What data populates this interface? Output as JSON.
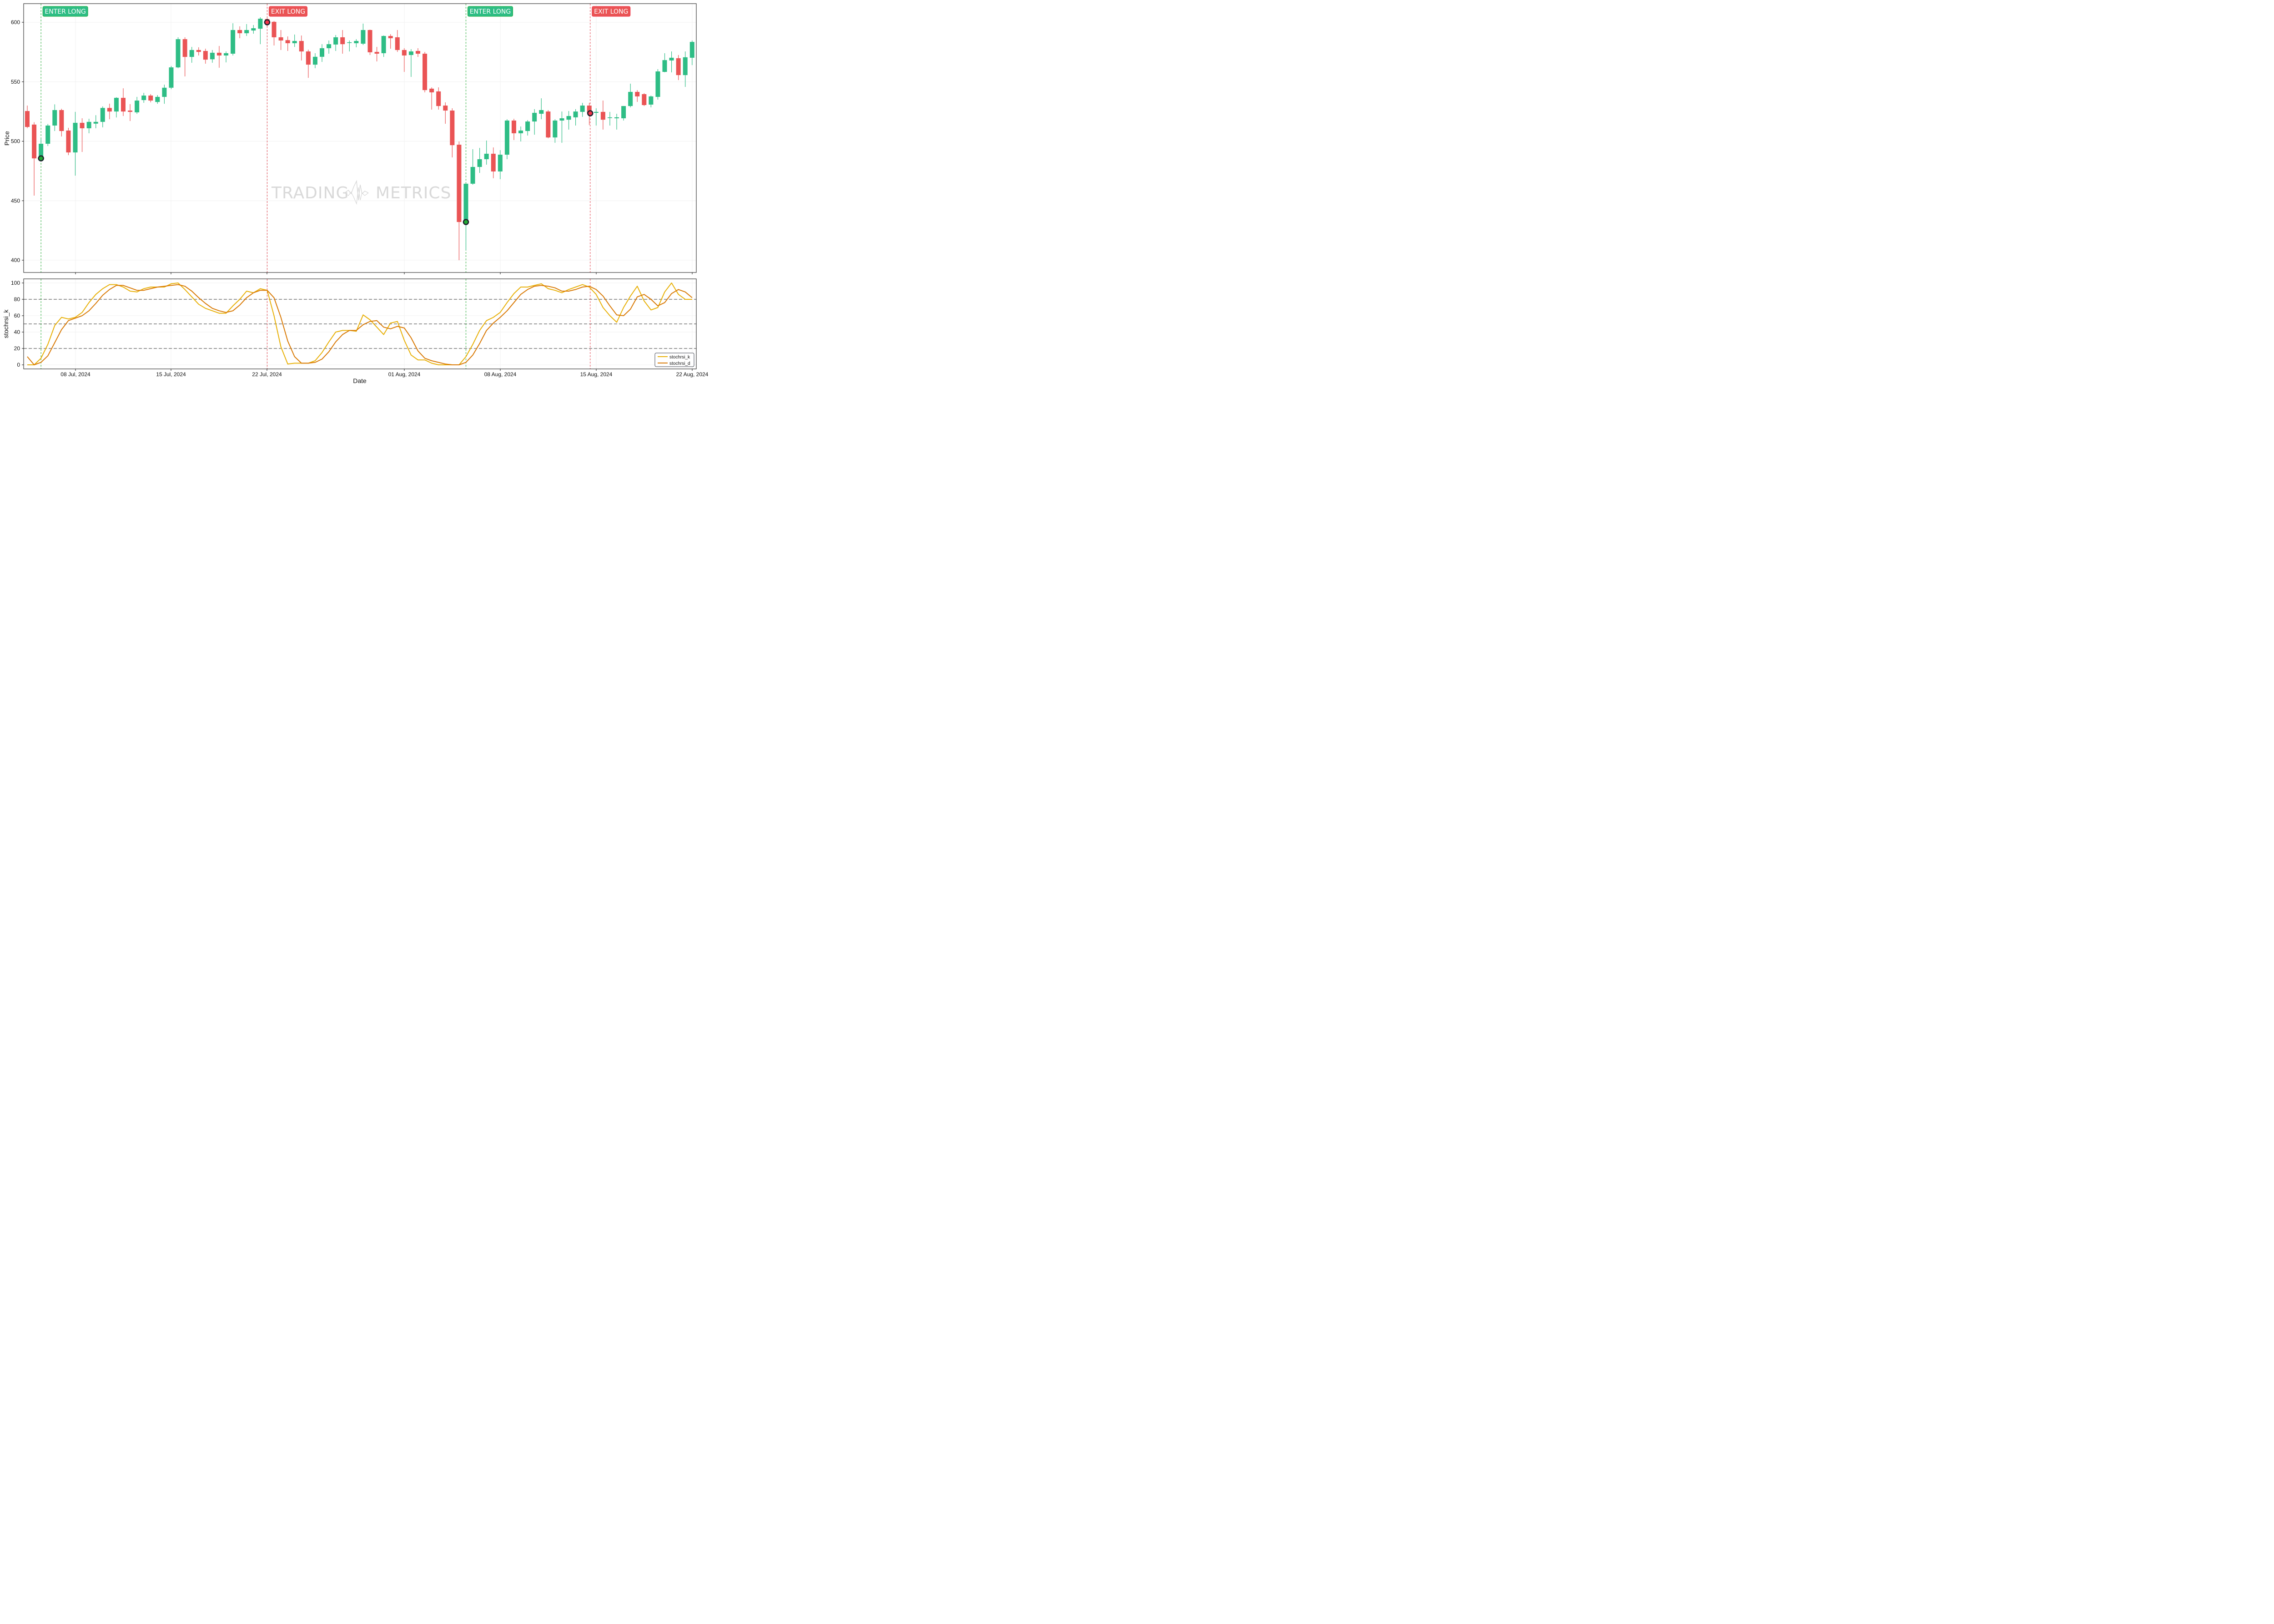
{
  "chart_data": [
    {
      "type": "candlestick",
      "title": "",
      "xlabel": "",
      "ylabel": "Price",
      "ylim": [
        390,
        621
      ],
      "yticks": [
        400,
        450,
        500,
        550,
        600
      ],
      "grid": true,
      "interval": "12h",
      "colors": {
        "up": "#2ebd85",
        "down": "#ea5455"
      },
      "watermark": "TRADING METRICS",
      "ohlc": [
        [
          525.4,
          530.0,
          511.0,
          512.0
        ],
        [
          514.0,
          516.0,
          454.3,
          485.6
        ],
        [
          485.6,
          502.0,
          484.0,
          497.9
        ],
        [
          497.9,
          514.5,
          496.0,
          513.2
        ],
        [
          513.2,
          531.0,
          508.6,
          526.2
        ],
        [
          526.2,
          527.3,
          504.0,
          508.6
        ],
        [
          509.0,
          511.3,
          488.3,
          490.6
        ],
        [
          490.6,
          524.7,
          471.1,
          515.5
        ],
        [
          515.5,
          519.3,
          491.0,
          510.9
        ],
        [
          510.9,
          518.9,
          506.7,
          516.3
        ],
        [
          514.8,
          521.9,
          510.9,
          516.3
        ],
        [
          516.3,
          529.3,
          511.7,
          528.0
        ],
        [
          528.0,
          531.6,
          518.5,
          525.0
        ],
        [
          525.0,
          537.0,
          520.0,
          536.5
        ],
        [
          536.5,
          544.5,
          521.2,
          525.0
        ],
        [
          525.8,
          531.2,
          517.0,
          524.7
        ],
        [
          524.3,
          537.3,
          523.0,
          534.2
        ],
        [
          534.6,
          540.7,
          532.3,
          538.4
        ],
        [
          538.4,
          539.6,
          532.7,
          534.2
        ],
        [
          533.0,
          538.8,
          531.5,
          537.3
        ],
        [
          537.3,
          547.6,
          531.5,
          545.0
        ],
        [
          545.0,
          563.3,
          543.8,
          562.1
        ],
        [
          562.1,
          587.4,
          561.4,
          585.8
        ],
        [
          585.8,
          587.4,
          554.5,
          570.9
        ],
        [
          570.9,
          579.3,
          566.0,
          576.7
        ],
        [
          576.7,
          579.0,
          572.1,
          575.1
        ],
        [
          575.9,
          577.8,
          565.2,
          568.6
        ],
        [
          568.9,
          576.7,
          566.0,
          574.4
        ],
        [
          574.4,
          580.1,
          561.8,
          572.1
        ],
        [
          572.1,
          575.5,
          566.3,
          574.0
        ],
        [
          573.6,
          599.2,
          572.1,
          593.5
        ],
        [
          593.5,
          596.6,
          586.6,
          590.8
        ],
        [
          590.8,
          598.5,
          588.5,
          593.5
        ],
        [
          593.1,
          597.7,
          590.4,
          595.0
        ],
        [
          594.6,
          604.2,
          581.6,
          603.0
        ],
        [
          602.7,
          603.5,
          595.8,
          600.4
        ],
        [
          600.4,
          601.1,
          580.5,
          587.4
        ],
        [
          587.4,
          593.5,
          576.7,
          584.7
        ],
        [
          585.0,
          588.1,
          575.9,
          582.4
        ],
        [
          582.4,
          589.7,
          579.3,
          584.3
        ],
        [
          584.3,
          588.9,
          567.9,
          575.5
        ],
        [
          575.5,
          577.0,
          553.3,
          564.4
        ],
        [
          564.4,
          574.0,
          561.4,
          571.0
        ],
        [
          571.0,
          581.6,
          566.7,
          578.2
        ],
        [
          578.2,
          584.7,
          573.6,
          581.6
        ],
        [
          581.3,
          589.3,
          575.9,
          587.4
        ],
        [
          587.4,
          593.5,
          573.6,
          581.6
        ],
        [
          582.8,
          584.7,
          575.5,
          583.2
        ],
        [
          582.4,
          585.8,
          579.0,
          584.3
        ],
        [
          582.0,
          598.9,
          580.9,
          593.5
        ],
        [
          593.5,
          593.9,
          572.5,
          574.8
        ],
        [
          575.1,
          579.3,
          567.1,
          573.6
        ],
        [
          574.0,
          588.9,
          570.9,
          588.5
        ],
        [
          588.5,
          590.0,
          577.8,
          586.6
        ],
        [
          587.4,
          593.5,
          575.1,
          576.7
        ],
        [
          576.7,
          578.2,
          558.3,
          572.1
        ],
        [
          572.5,
          577.4,
          554.1,
          575.5
        ],
        [
          575.9,
          578.2,
          570.9,
          573.6
        ],
        [
          573.6,
          575.1,
          541.1,
          543.0
        ],
        [
          544.2,
          545.3,
          526.6,
          541.1
        ],
        [
          541.9,
          545.3,
          526.6,
          529.6
        ],
        [
          530.0,
          532.7,
          514.7,
          525.8
        ],
        [
          525.8,
          527.7,
          486.4,
          496.7
        ],
        [
          497.1,
          499.8,
          400.0,
          432.1
        ],
        [
          432.1,
          464.3,
          408.4,
          464.3
        ],
        [
          464.3,
          493.3,
          463.5,
          478.4
        ],
        [
          478.4,
          494.4,
          473.4,
          484.9
        ],
        [
          484.9,
          500.6,
          480.3,
          489.5
        ],
        [
          489.5,
          494.8,
          468.9,
          474.6
        ],
        [
          474.6,
          492.5,
          468.1,
          488.7
        ],
        [
          488.7,
          518.5,
          484.9,
          517.4
        ],
        [
          517.4,
          518.9,
          501.0,
          506.7
        ],
        [
          506.7,
          512.4,
          499.8,
          509.0
        ],
        [
          508.6,
          517.8,
          504.8,
          516.6
        ],
        [
          516.6,
          527.0,
          505.5,
          523.9
        ],
        [
          523.1,
          536.1,
          518.5,
          526.2
        ],
        [
          525.0,
          526.2,
          502.5,
          503.2
        ],
        [
          503.2,
          518.5,
          498.7,
          517.4
        ],
        [
          517.4,
          525.0,
          498.7,
          519.3
        ],
        [
          518.1,
          525.4,
          509.8,
          521.2
        ],
        [
          520.1,
          527.0,
          513.2,
          525.0
        ],
        [
          524.7,
          532.3,
          520.5,
          530.0
        ],
        [
          530.0,
          532.3,
          513.6,
          523.5
        ],
        [
          523.9,
          527.7,
          513.2,
          524.7
        ],
        [
          524.7,
          534.2,
          509.8,
          518.1
        ],
        [
          519.7,
          524.7,
          513.2,
          520.1
        ],
        [
          519.3,
          523.1,
          509.8,
          520.1
        ],
        [
          519.3,
          529.6,
          517.4,
          529.6
        ],
        [
          529.6,
          548.4,
          528.5,
          541.5
        ],
        [
          541.5,
          543.0,
          533.1,
          537.7
        ],
        [
          539.6,
          540.4,
          529.6,
          530.4
        ],
        [
          530.8,
          538.4,
          528.5,
          537.7
        ],
        [
          537.3,
          560.6,
          535.0,
          558.7
        ],
        [
          558.3,
          574.0,
          558.0,
          568.2
        ],
        [
          567.9,
          575.5,
          557.9,
          570.2
        ],
        [
          569.8,
          572.5,
          551.4,
          555.6
        ],
        [
          555.6,
          575.5,
          545.7,
          570.6
        ],
        [
          570.2,
          584.7,
          564.0,
          583.5
        ]
      ],
      "signals": [
        {
          "label": "ENTER LONG",
          "type": "enter",
          "candle_index": 2,
          "price": 485.6
        },
        {
          "label": "EXIT LONG",
          "type": "exit",
          "candle_index": 35,
          "price": 600.0
        },
        {
          "label": "ENTER LONG",
          "type": "enter",
          "candle_index": 64,
          "price": 432.1
        },
        {
          "label": "EXIT LONG",
          "type": "exit",
          "candle_index": 82,
          "price": 523.5
        }
      ]
    },
    {
      "type": "line",
      "title": "",
      "xlabel": "Date",
      "ylabel": "stochrsi_k",
      "ylim": [
        -5,
        105
      ],
      "yticks": [
        0,
        20,
        40,
        60,
        80,
        100
      ],
      "reference_lines": [
        20,
        50,
        80
      ],
      "legend_position": "lower right",
      "x_ticks": [
        "08 Jul, 2024",
        "15 Jul, 2024",
        "22 Jul, 2024",
        "01 Aug, 2024",
        "08 Aug, 2024",
        "15 Aug, 2024",
        "22 Aug, 2024"
      ],
      "series": [
        {
          "name": "stochrsi_k",
          "color": "#e8b10a",
          "values": [
            0,
            0,
            8,
            25,
            48,
            58,
            56,
            58,
            64,
            76,
            86,
            93,
            98,
            98,
            95,
            90,
            89,
            93,
            95,
            95,
            95,
            99,
            100,
            92,
            83,
            74,
            69,
            66,
            63,
            63,
            72,
            80,
            90,
            88,
            93,
            91,
            60,
            22,
            1,
            2,
            2,
            2,
            5,
            15,
            28,
            40,
            42,
            42,
            41,
            61,
            55,
            46,
            37,
            51,
            53,
            30,
            12,
            6,
            6,
            2,
            0,
            0,
            0,
            0,
            10,
            25,
            42,
            54,
            58,
            64,
            76,
            87,
            95,
            95,
            97,
            99,
            93,
            91,
            88,
            92,
            95,
            98,
            95,
            86,
            70,
            60,
            52,
            70,
            84,
            96,
            78,
            67,
            70,
            89,
            100,
            86,
            80,
            80
          ]
        },
        {
          "name": "stochrsi_d",
          "color": "#d97a06",
          "values": [
            10,
            0,
            3,
            11,
            27,
            43,
            54,
            57,
            60,
            66,
            75,
            85,
            92,
            97,
            97,
            94,
            91,
            91,
            93,
            95,
            96,
            97,
            98,
            96,
            90,
            82,
            75,
            69,
            66,
            64,
            66,
            73,
            82,
            88,
            91,
            91,
            82,
            58,
            29,
            10,
            2,
            2,
            3,
            7,
            16,
            28,
            37,
            42,
            42,
            49,
            53,
            54,
            46,
            44,
            47,
            45,
            33,
            17,
            8,
            5,
            3,
            1,
            0,
            0,
            3,
            12,
            26,
            42,
            51,
            58,
            66,
            76,
            86,
            92,
            96,
            97,
            96,
            94,
            90,
            90,
            92,
            95,
            96,
            92,
            84,
            72,
            61,
            60,
            68,
            83,
            86,
            80,
            72,
            76,
            87,
            92,
            89,
            82
          ]
        }
      ]
    }
  ],
  "price_panel": {
    "ylabel": "Price",
    "yticks": [
      "600",
      "550",
      "500",
      "450",
      "400"
    ],
    "watermark_left": "TRADING",
    "watermark_right": "METRICS"
  },
  "stoch_panel": {
    "ylabel": "stochrsi_k",
    "yticks": [
      "100",
      "80",
      "60",
      "40",
      "20",
      "0"
    ]
  },
  "x_axis": {
    "label": "Date",
    "ticks": [
      "08 Jul, 2024",
      "15 Jul, 2024",
      "22 Jul, 2024",
      "01 Aug, 2024",
      "08 Aug, 2024",
      "15 Aug, 2024",
      "22 Aug, 2024"
    ]
  },
  "legend": {
    "items": [
      {
        "label": "stochrsi_k",
        "color": "#e8b10a"
      },
      {
        "label": "stochrsi_d",
        "color": "#d97a06"
      }
    ]
  },
  "signal_labels": [
    "ENTER LONG",
    "EXIT LONG",
    "ENTER LONG",
    "EXIT LONG"
  ],
  "colors": {
    "up": "#2ebd85",
    "down": "#ea5455",
    "enter": "#2ebd85",
    "enter_border": "#1aab3a",
    "exit": "#ea5455",
    "exit_border": "#f03548",
    "enter_line": "#22aa33",
    "exit_line": "#e03a46",
    "reference_line": "#999999"
  }
}
